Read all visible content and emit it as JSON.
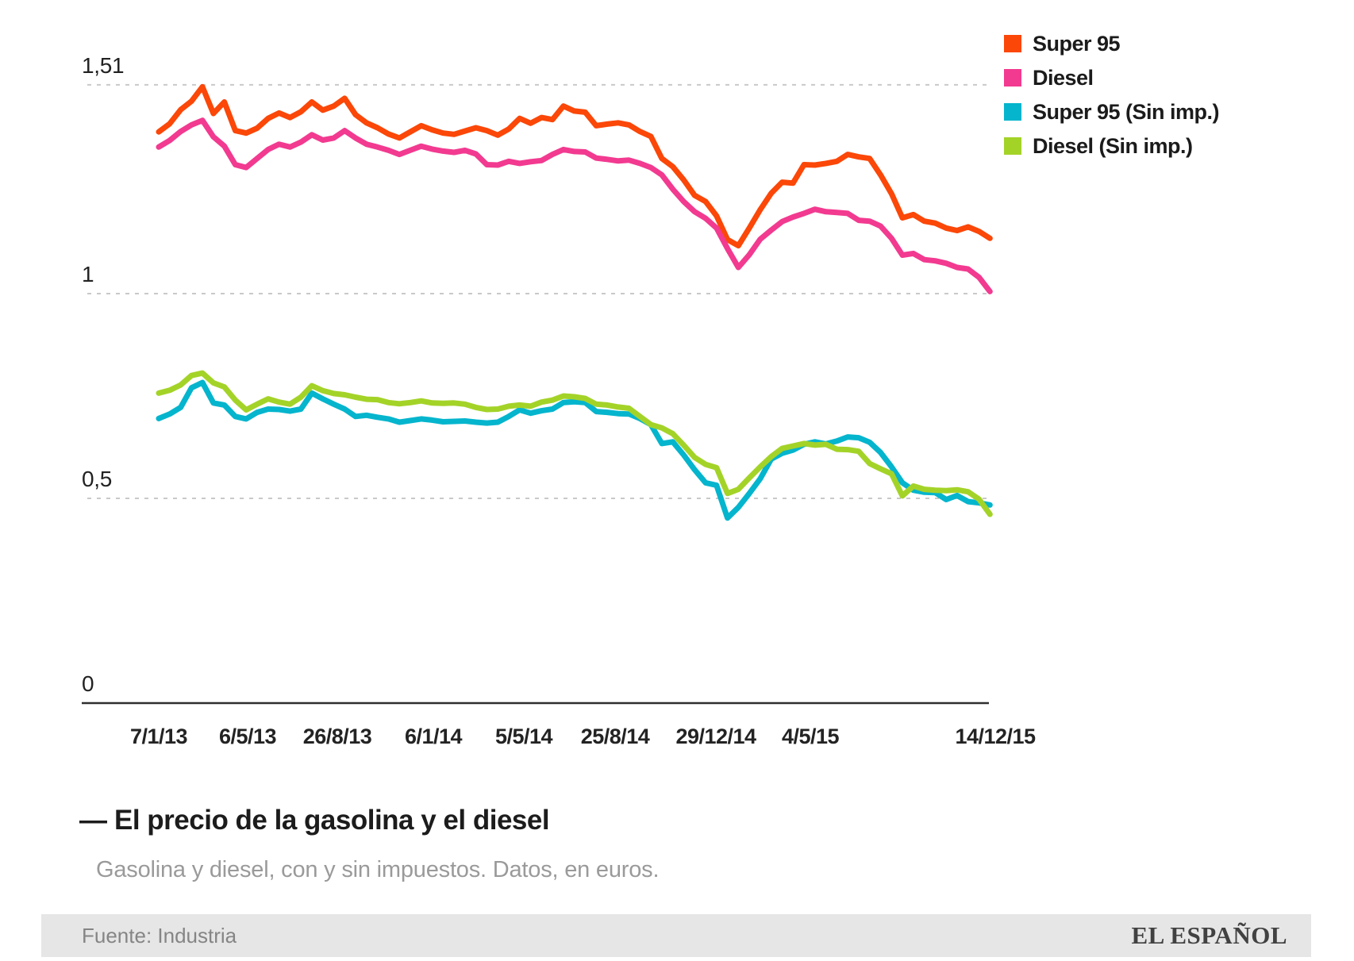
{
  "title": {
    "dash": "—",
    "text": "El precio de la gasolina y el diesel"
  },
  "subtitle": "Gasolina y diesel, con y sin impuestos. Datos, en euros.",
  "footer": {
    "source": "Fuente: Industria",
    "brand": "EL ESPAÑOL"
  },
  "colors": {
    "grid": "#c9c9c9",
    "axis": "#2e2e2e",
    "background": "#ffffff",
    "footer_bar": "#e6e6e6"
  },
  "chart_data": {
    "type": "line",
    "unit": "euros",
    "grid": "dashed-horizontal",
    "legend_position": "top-right",
    "ylim": [
      0,
      1.58
    ],
    "y_ticks": [
      {
        "label": "1,51",
        "value": 1.51
      },
      {
        "label": "1",
        "value": 1.0
      },
      {
        "label": "0,5",
        "value": 0.5
      },
      {
        "label": "0",
        "value": 0.0
      }
    ],
    "x_tick_labels": [
      "7/1/13",
      "6/5/13",
      "26/8/13",
      "6/1/14",
      "5/5/14",
      "25/8/14",
      "29/12/14",
      "4/5/15",
      "14/12/15"
    ],
    "series": [
      {
        "name": "Super 95",
        "color": "#fb4708",
        "values": [
          1.395,
          1.415,
          1.449,
          1.47,
          1.505,
          1.44,
          1.468,
          1.398,
          1.392,
          1.404,
          1.428,
          1.441,
          1.43,
          1.444,
          1.468,
          1.448,
          1.458,
          1.477,
          1.437,
          1.417,
          1.405,
          1.39,
          1.38,
          1.395,
          1.41,
          1.4,
          1.392,
          1.389,
          1.397,
          1.405,
          1.398,
          1.387,
          1.402,
          1.428,
          1.416,
          1.43,
          1.425,
          1.458,
          1.446,
          1.443,
          1.41,
          1.414,
          1.417,
          1.412,
          1.396,
          1.384,
          1.33,
          1.31,
          1.278,
          1.24,
          1.225,
          1.19,
          1.132,
          1.117,
          1.16,
          1.205,
          1.245,
          1.272,
          1.27,
          1.315,
          1.314,
          1.318,
          1.323,
          1.34,
          1.334,
          1.33,
          1.29,
          1.244,
          1.185,
          1.193,
          1.177,
          1.172,
          1.16,
          1.154,
          1.163,
          1.152,
          1.135
        ]
      },
      {
        "name": "Diesel",
        "color": "#f23a90",
        "values": [
          1.358,
          1.374,
          1.396,
          1.412,
          1.423,
          1.383,
          1.36,
          1.315,
          1.308,
          1.33,
          1.352,
          1.365,
          1.358,
          1.37,
          1.388,
          1.375,
          1.38,
          1.398,
          1.38,
          1.365,
          1.358,
          1.35,
          1.34,
          1.35,
          1.36,
          1.353,
          1.348,
          1.345,
          1.35,
          1.341,
          1.315,
          1.314,
          1.323,
          1.318,
          1.322,
          1.325,
          1.34,
          1.352,
          1.347,
          1.346,
          1.331,
          1.328,
          1.324,
          1.326,
          1.318,
          1.308,
          1.29,
          1.255,
          1.225,
          1.2,
          1.184,
          1.16,
          1.11,
          1.064,
          1.095,
          1.133,
          1.155,
          1.176,
          1.187,
          1.196,
          1.206,
          1.2,
          1.198,
          1.196,
          1.179,
          1.177,
          1.165,
          1.135,
          1.094,
          1.098,
          1.083,
          1.08,
          1.074,
          1.064,
          1.06,
          1.04,
          1.005
        ]
      },
      {
        "name": "Super 95 (Sin imp.)",
        "color": "#04b5cd",
        "values": [
          0.695,
          0.706,
          0.722,
          0.77,
          0.783,
          0.733,
          0.728,
          0.7,
          0.694,
          0.71,
          0.718,
          0.717,
          0.713,
          0.718,
          0.757,
          0.743,
          0.73,
          0.718,
          0.7,
          0.703,
          0.698,
          0.694,
          0.686,
          0.69,
          0.694,
          0.691,
          0.687,
          0.688,
          0.689,
          0.686,
          0.684,
          0.686,
          0.7,
          0.716,
          0.708,
          0.714,
          0.718,
          0.734,
          0.736,
          0.734,
          0.712,
          0.71,
          0.707,
          0.706,
          0.695,
          0.68,
          0.634,
          0.638,
          0.606,
          0.57,
          0.538,
          0.532,
          0.452,
          0.478,
          0.512,
          0.548,
          0.596,
          0.61,
          0.618,
          0.632,
          0.638,
          0.633,
          0.64,
          0.65,
          0.648,
          0.637,
          0.612,
          0.577,
          0.538,
          0.52,
          0.515,
          0.514,
          0.497,
          0.507,
          0.492,
          0.489,
          0.484
        ]
      },
      {
        "name": "Diesel (Sin imp.)",
        "color": "#a4d328",
        "values": [
          0.757,
          0.764,
          0.777,
          0.8,
          0.806,
          0.782,
          0.772,
          0.74,
          0.716,
          0.73,
          0.743,
          0.735,
          0.73,
          0.747,
          0.775,
          0.763,
          0.756,
          0.753,
          0.747,
          0.742,
          0.741,
          0.734,
          0.731,
          0.734,
          0.738,
          0.733,
          0.732,
          0.733,
          0.73,
          0.722,
          0.717,
          0.718,
          0.725,
          0.728,
          0.725,
          0.735,
          0.74,
          0.75,
          0.748,
          0.744,
          0.73,
          0.728,
          0.723,
          0.72,
          0.7,
          0.68,
          0.672,
          0.658,
          0.63,
          0.6,
          0.583,
          0.575,
          0.512,
          0.522,
          0.55,
          0.577,
          0.602,
          0.622,
          0.628,
          0.634,
          0.63,
          0.632,
          0.62,
          0.619,
          0.615,
          0.585,
          0.572,
          0.56,
          0.506,
          0.53,
          0.522,
          0.52,
          0.519,
          0.521,
          0.516,
          0.498,
          0.461
        ]
      }
    ]
  }
}
